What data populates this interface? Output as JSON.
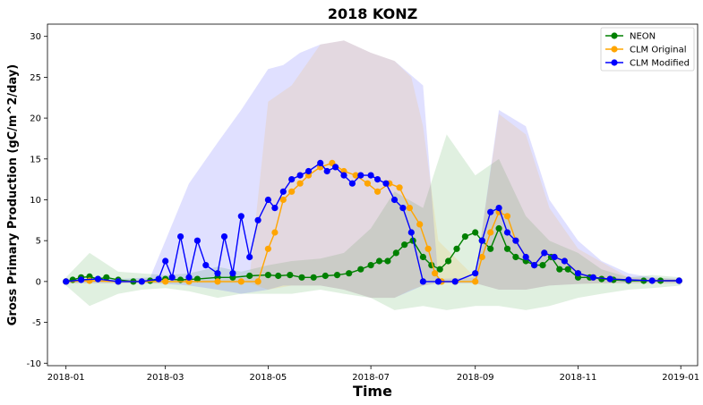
{
  "chart_data": {
    "type": "line",
    "title": "2018 KONZ",
    "xlabel": "Time",
    "ylabel": "Gross Primary Production (gC/m^2/day)",
    "xlim": [
      "2017-12-21",
      "2019-01-11"
    ],
    "ylim": [
      -10.3,
      31.5
    ],
    "x_ticks": [
      "2018-01",
      "2018-03",
      "2018-05",
      "2018-07",
      "2018-09",
      "2018-11",
      "2019-01"
    ],
    "y_ticks": [
      -10,
      -5,
      0,
      5,
      10,
      15,
      20,
      25,
      30
    ],
    "legend_position": "top-right",
    "grid": false,
    "bands": [
      {
        "name": "NEON",
        "color": "#008000",
        "x": [
          "2018-01-01",
          "2018-01-15",
          "2018-02-01",
          "2018-02-15",
          "2018-03-01",
          "2018-03-15",
          "2018-04-01",
          "2018-04-15",
          "2018-05-01",
          "2018-05-15",
          "2018-06-01",
          "2018-06-15",
          "2018-07-01",
          "2018-07-15",
          "2018-08-01",
          "2018-08-15",
          "2018-09-01",
          "2018-09-15",
          "2018-10-01",
          "2018-10-15",
          "2018-11-01",
          "2018-11-15",
          "2018-12-01",
          "2018-12-15",
          "2019-01-01"
        ],
        "upper": [
          0.5,
          3.5,
          1.2,
          1.0,
          0.8,
          1.0,
          1.8,
          1.2,
          2.0,
          2.5,
          2.8,
          3.5,
          6.5,
          11.0,
          9.0,
          18.0,
          13.0,
          15.0,
          8.0,
          5.0,
          3.5,
          1.5,
          0.5,
          0.8,
          0.5
        ],
        "lower": [
          -0.5,
          -3.0,
          -1.5,
          -1.0,
          -0.8,
          -1.2,
          -2.0,
          -1.5,
          -1.5,
          -1.5,
          -1.0,
          -1.5,
          -2.0,
          -3.5,
          -3.0,
          -3.5,
          -3.0,
          -3.0,
          -3.5,
          -3.0,
          -2.0,
          -1.5,
          -1.0,
          -0.8,
          -0.5
        ]
      },
      {
        "name": "CLM Modified",
        "color": "#0000ff",
        "x": [
          "2018-01-01",
          "2018-02-01",
          "2018-02-20",
          "2018-03-01",
          "2018-03-15",
          "2018-04-01",
          "2018-04-15",
          "2018-05-01",
          "2018-05-10",
          "2018-05-20",
          "2018-06-01",
          "2018-06-15",
          "2018-07-01",
          "2018-07-15",
          "2018-08-01",
          "2018-08-10",
          "2018-09-01",
          "2018-09-15",
          "2018-10-01",
          "2018-10-15",
          "2018-11-01",
          "2018-11-15",
          "2018-12-01",
          "2018-12-15",
          "2019-01-01"
        ],
        "upper": [
          0.2,
          0.3,
          0.5,
          5.0,
          12.0,
          17.0,
          21.0,
          26.0,
          26.5,
          28.0,
          29.0,
          29.5,
          28.0,
          27.0,
          24.0,
          0.3,
          0.5,
          21.0,
          19.0,
          10.0,
          5.0,
          2.5,
          1.0,
          0.5,
          0.3
        ],
        "lower": [
          -0.2,
          -0.2,
          -0.2,
          -0.3,
          -0.5,
          -1.0,
          -1.5,
          -1.0,
          -0.5,
          -0.5,
          -0.5,
          -1.0,
          -2.0,
          -2.0,
          -0.5,
          -0.2,
          -0.2,
          -1.0,
          -1.0,
          -0.5,
          -0.3,
          -0.2,
          -0.2,
          -0.2,
          -0.2
        ]
      },
      {
        "name": "CLM Original",
        "color": "#ffa500",
        "x": [
          "2018-01-01",
          "2018-02-01",
          "2018-03-01",
          "2018-04-01",
          "2018-04-20",
          "2018-05-01",
          "2018-05-15",
          "2018-06-01",
          "2018-06-15",
          "2018-07-01",
          "2018-07-15",
          "2018-07-25",
          "2018-08-01",
          "2018-08-10",
          "2018-09-01",
          "2018-09-15",
          "2018-10-01",
          "2018-10-15",
          "2018-11-01",
          "2018-12-01",
          "2019-01-01"
        ],
        "upper": [
          0.2,
          0.2,
          0.2,
          0.2,
          0.5,
          22.0,
          24.0,
          29.0,
          29.5,
          28.0,
          27.0,
          25.0,
          19.0,
          5.0,
          0.5,
          20.5,
          18.0,
          9.0,
          4.0,
          0.5,
          0.3
        ],
        "lower": [
          -0.2,
          -0.2,
          -0.2,
          -0.2,
          -0.2,
          -1.0,
          -0.5,
          -0.5,
          -1.0,
          -2.0,
          -2.0,
          -1.0,
          -0.5,
          -0.2,
          -0.2,
          -1.0,
          -1.0,
          -0.5,
          -0.3,
          -0.2,
          -0.2
        ]
      }
    ],
    "series": [
      {
        "name": "NEON",
        "color": "#008000",
        "x": [
          "2018-01-01",
          "2018-01-05",
          "2018-01-10",
          "2018-01-15",
          "2018-01-20",
          "2018-01-25",
          "2018-02-01",
          "2018-02-10",
          "2018-02-20",
          "2018-03-01",
          "2018-03-10",
          "2018-03-20",
          "2018-04-01",
          "2018-04-10",
          "2018-04-20",
          "2018-05-01",
          "2018-05-07",
          "2018-05-14",
          "2018-05-21",
          "2018-05-28",
          "2018-06-04",
          "2018-06-11",
          "2018-06-18",
          "2018-06-25",
          "2018-07-01",
          "2018-07-06",
          "2018-07-11",
          "2018-07-16",
          "2018-07-21",
          "2018-07-26",
          "2018-08-01",
          "2018-08-06",
          "2018-08-11",
          "2018-08-16",
          "2018-08-21",
          "2018-08-26",
          "2018-09-01",
          "2018-09-05",
          "2018-09-10",
          "2018-09-15",
          "2018-09-20",
          "2018-09-25",
          "2018-10-01",
          "2018-10-06",
          "2018-10-11",
          "2018-10-16",
          "2018-10-21",
          "2018-10-26",
          "2018-11-01",
          "2018-11-08",
          "2018-11-15",
          "2018-11-22",
          "2018-12-01",
          "2018-12-10",
          "2018-12-20",
          "2018-12-31"
        ],
        "values": [
          0.0,
          0.2,
          0.5,
          0.6,
          0.3,
          0.5,
          0.2,
          0.0,
          0.1,
          0.3,
          0.2,
          0.3,
          0.5,
          0.5,
          0.7,
          0.8,
          0.7,
          0.8,
          0.5,
          0.5,
          0.7,
          0.8,
          1.0,
          1.5,
          2.0,
          2.5,
          2.5,
          3.5,
          4.5,
          5.0,
          3.0,
          2.0,
          1.5,
          2.5,
          4.0,
          5.5,
          6.0,
          5.0,
          4.0,
          6.5,
          4.0,
          3.0,
          2.5,
          2.0,
          2.0,
          3.0,
          1.5,
          1.5,
          0.5,
          0.5,
          0.3,
          0.2,
          0.1,
          0.1,
          0.1,
          0.1
        ]
      },
      {
        "name": "CLM Original",
        "color": "#ffa500",
        "x": [
          "2018-01-01",
          "2018-01-15",
          "2018-02-01",
          "2018-02-15",
          "2018-03-01",
          "2018-03-15",
          "2018-04-01",
          "2018-04-15",
          "2018-04-25",
          "2018-05-01",
          "2018-05-05",
          "2018-05-10",
          "2018-05-15",
          "2018-05-20",
          "2018-05-25",
          "2018-06-01",
          "2018-06-08",
          "2018-06-15",
          "2018-06-22",
          "2018-06-29",
          "2018-07-05",
          "2018-07-12",
          "2018-07-18",
          "2018-07-24",
          "2018-07-30",
          "2018-08-04",
          "2018-08-08",
          "2018-08-12",
          "2018-08-20",
          "2018-09-01",
          "2018-09-05",
          "2018-09-10",
          "2018-09-15",
          "2018-09-20",
          "2018-09-25",
          "2018-10-01",
          "2018-10-06",
          "2018-10-12",
          "2018-10-18",
          "2018-10-24",
          "2018-11-01",
          "2018-11-10",
          "2018-11-20",
          "2018-12-01",
          "2018-12-15",
          "2018-12-31"
        ],
        "values": [
          0.0,
          0.1,
          0.0,
          0.0,
          0.0,
          0.0,
          0.0,
          0.0,
          0.0,
          4.0,
          6.0,
          10.0,
          11.0,
          12.0,
          13.0,
          14.0,
          14.5,
          13.5,
          13.0,
          12.0,
          11.0,
          12.0,
          11.5,
          9.0,
          7.0,
          4.0,
          1.0,
          0.0,
          0.0,
          0.0,
          3.0,
          6.0,
          8.5,
          8.0,
          5.0,
          3.0,
          2.0,
          3.5,
          3.0,
          2.5,
          1.0,
          0.5,
          0.3,
          0.2,
          0.1,
          0.1
        ]
      },
      {
        "name": "CLM Modified",
        "color": "#0000ff",
        "x": [
          "2018-01-01",
          "2018-01-10",
          "2018-01-20",
          "2018-02-01",
          "2018-02-15",
          "2018-02-25",
          "2018-03-01",
          "2018-03-05",
          "2018-03-10",
          "2018-03-15",
          "2018-03-20",
          "2018-03-25",
          "2018-04-01",
          "2018-04-05",
          "2018-04-10",
          "2018-04-15",
          "2018-04-20",
          "2018-04-25",
          "2018-05-01",
          "2018-05-05",
          "2018-05-10",
          "2018-05-15",
          "2018-05-20",
          "2018-05-25",
          "2018-06-01",
          "2018-06-05",
          "2018-06-10",
          "2018-06-15",
          "2018-06-20",
          "2018-06-25",
          "2018-07-01",
          "2018-07-05",
          "2018-07-10",
          "2018-07-15",
          "2018-07-20",
          "2018-07-25",
          "2018-08-01",
          "2018-08-10",
          "2018-08-20",
          "2018-09-01",
          "2018-09-05",
          "2018-09-10",
          "2018-09-15",
          "2018-09-20",
          "2018-09-25",
          "2018-10-01",
          "2018-10-06",
          "2018-10-12",
          "2018-10-18",
          "2018-10-24",
          "2018-11-01",
          "2018-11-10",
          "2018-11-20",
          "2018-12-01",
          "2018-12-15",
          "2018-12-31"
        ],
        "values": [
          0.0,
          0.2,
          0.3,
          0.0,
          0.0,
          0.3,
          2.5,
          0.5,
          5.5,
          0.5,
          5.0,
          2.0,
          1.0,
          5.5,
          1.0,
          8.0,
          3.0,
          7.5,
          10.0,
          9.0,
          11.0,
          12.5,
          13.0,
          13.5,
          14.5,
          13.5,
          14.0,
          13.0,
          12.0,
          13.0,
          13.0,
          12.5,
          12.0,
          10.0,
          9.0,
          6.0,
          0.0,
          0.0,
          0.0,
          1.0,
          5.0,
          8.5,
          9.0,
          6.0,
          5.0,
          3.0,
          2.0,
          3.5,
          3.0,
          2.5,
          1.0,
          0.5,
          0.3,
          0.2,
          0.1,
          0.1
        ]
      }
    ]
  }
}
